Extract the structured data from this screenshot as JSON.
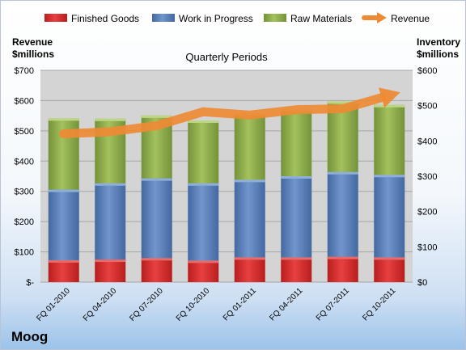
{
  "company": "Moog",
  "legend": [
    {
      "label": "Finished Goods",
      "color": "#d92b2b"
    },
    {
      "label": "Work in Progress",
      "color": "#5a80b8"
    },
    {
      "label": "Raw Materials",
      "color": "#8fae4a"
    },
    {
      "label": "Revenue",
      "color": "#ee8a34"
    }
  ],
  "chart_data": {
    "type": "bar",
    "subtype": "stacked-bar with line (dual axis)",
    "title": "Quarterly Periods",
    "ylabel_left": "Revenue\n$millions",
    "ylabel_right": "Inventory\n$millions",
    "categories": [
      "FQ 01-2010",
      "FQ 04-2010",
      "FQ 07-2010",
      "FQ 10-2010",
      "FQ 01-2011",
      "FQ 04-2011",
      "FQ 07-2011",
      "FQ 10-2011"
    ],
    "left_axis": {
      "ylim": [
        0,
        700
      ],
      "ticks": [
        "$-",
        "$100",
        "$200",
        "$300",
        "$400",
        "$500",
        "$600",
        "$700"
      ]
    },
    "right_axis": {
      "ylim": [
        0,
        600
      ],
      "ticks": [
        "$0",
        "$100",
        "$200",
        "$300",
        "$400",
        "$500",
        "$600"
      ]
    },
    "series": [
      {
        "name": "Finished Goods",
        "axis": "right",
        "values": [
          62,
          64,
          68,
          61,
          70,
          70,
          72,
          70
        ]
      },
      {
        "name": "Work in Progress",
        "axis": "right",
        "values": [
          200,
          216,
          226,
          219,
          220,
          230,
          240,
          234
        ]
      },
      {
        "name": "Raw Materials",
        "axis": "right",
        "values": [
          202,
          183,
          178,
          178,
          188,
          190,
          200,
          198
        ]
      },
      {
        "name": "Revenue",
        "axis": "left",
        "type": "line",
        "values": [
          490,
          497,
          517,
          563,
          552,
          570,
          573,
          617
        ]
      }
    ],
    "grid": true,
    "legend_position": "top"
  },
  "colors": {
    "finished": "#d92b2b",
    "wip": "#5a80b8",
    "raw": "#8fae4a",
    "revenue": "#ee8a34",
    "plot_bg": "#d4d4d4"
  }
}
